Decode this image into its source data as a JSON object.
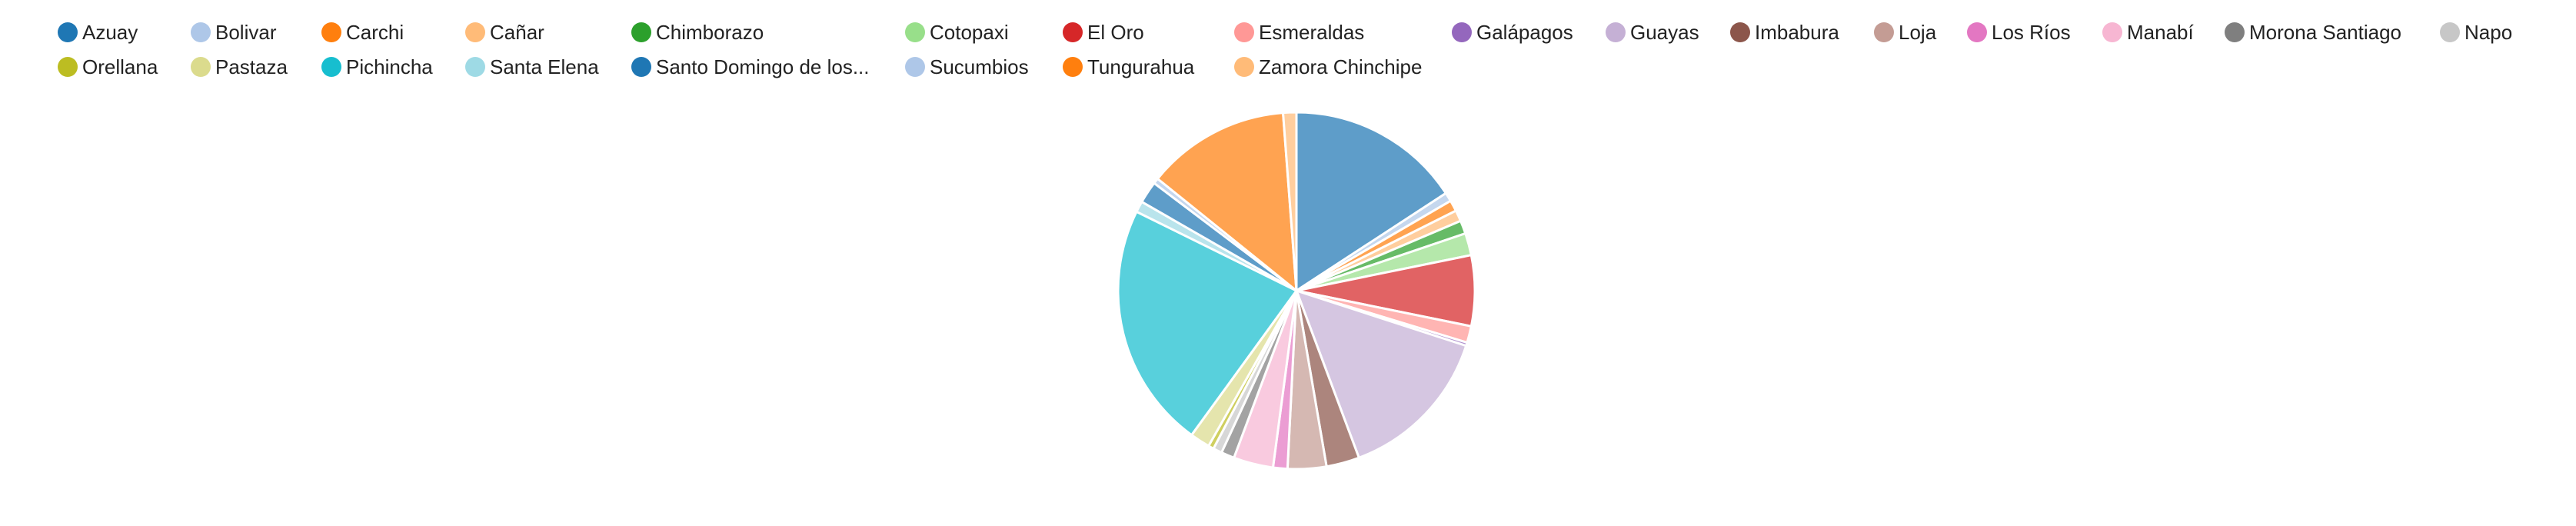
{
  "chart_data": {
    "type": "pie",
    "title": "",
    "legend_position": "top",
    "categories": [
      "Azuay",
      "Bolivar",
      "Carchi",
      "Cañar",
      "Chimborazo",
      "Cotopaxi",
      "El Oro",
      "Esmeraldas",
      "Galápagos",
      "Guayas",
      "Imbabura",
      "Loja",
      "Los Ríos",
      "Manabí",
      "Morona Santiago",
      "Napo",
      "Orellana",
      "Pastaza",
      "Pichincha",
      "Santa Elena",
      "Santo Domingo de los...",
      "Sucumbios",
      "Tungurahua",
      "Zamora Chinchipe"
    ],
    "slices": [
      {
        "label": "Azuay",
        "value": 15.8,
        "color": "#1f77b4"
      },
      {
        "label": "Bolivar",
        "value": 0.8,
        "color": "#aec7e8"
      },
      {
        "label": "Carchi",
        "value": 1.0,
        "color": "#ff7f0e"
      },
      {
        "label": "Cañar",
        "value": 1.0,
        "color": "#ffbb78"
      },
      {
        "label": "Chimborazo",
        "value": 1.2,
        "color": "#2ca02c"
      },
      {
        "label": "Cotopaxi",
        "value": 2.0,
        "color": "#98df8a"
      },
      {
        "label": "El Oro",
        "value": 6.4,
        "color": "#d62728"
      },
      {
        "label": "Esmeraldas",
        "value": 1.5,
        "color": "#ff9896"
      },
      {
        "label": "Galápagos",
        "value": 0.3,
        "color": "#9467bd"
      },
      {
        "label": "Guayas",
        "value": 14.3,
        "color": "#c5b0d5"
      },
      {
        "label": "Imbabura",
        "value": 3.0,
        "color": "#8c564b"
      },
      {
        "label": "Loja",
        "value": 3.5,
        "color": "#c49c94"
      },
      {
        "label": "Los Ríos",
        "value": 1.3,
        "color": "#e377c2"
      },
      {
        "label": "Manabí",
        "value": 3.6,
        "color": "#f7b6d2"
      },
      {
        "label": "Morona Santiago",
        "value": 1.2,
        "color": "#7f7f7f"
      },
      {
        "label": "Napo",
        "value": 0.8,
        "color": "#c7c7c7"
      },
      {
        "label": "Orellana",
        "value": 0.5,
        "color": "#bcbd22"
      },
      {
        "label": "Pastaza",
        "value": 1.8,
        "color": "#dbdb8d"
      },
      {
        "label": "Pichincha",
        "value": 22.3,
        "color": "#17becf"
      },
      {
        "label": "Santa Elena",
        "value": 1.0,
        "color": "#9edae5"
      },
      {
        "label": "Santo Domingo de los...",
        "value": 2.0,
        "color": "#1f77b4"
      },
      {
        "label": "Sucumbios",
        "value": 0.5,
        "color": "#aec7e8"
      },
      {
        "label": "Tungurahua",
        "value": 13.0,
        "color": "#ff7f0e"
      },
      {
        "label": "Zamora Chinchipe",
        "value": 1.2,
        "color": "#ffbb78"
      }
    ]
  }
}
